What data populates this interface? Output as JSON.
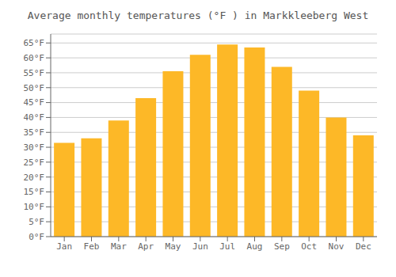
{
  "chart_data": {
    "type": "bar",
    "title": "Average monthly temperatures (°F ) in Markkleeberg West",
    "categories": [
      "Jan",
      "Feb",
      "Mar",
      "Apr",
      "May",
      "Jun",
      "Jul",
      "Aug",
      "Sep",
      "Oct",
      "Nov",
      "Dec"
    ],
    "values": [
      31.5,
      33.0,
      39.0,
      46.5,
      55.5,
      61.0,
      64.5,
      63.5,
      57.0,
      49.0,
      40.0,
      34.0
    ],
    "color": "#FDB827",
    "ylim": [
      0,
      68
    ],
    "yticks": [
      {
        "value": 0,
        "label": "0°F"
      },
      {
        "value": 5,
        "label": "5°F"
      },
      {
        "value": 10,
        "label": "10°F"
      },
      {
        "value": 15,
        "label": "15°F"
      },
      {
        "value": 20,
        "label": "20°F"
      },
      {
        "value": 25,
        "label": "25°F"
      },
      {
        "value": 30,
        "label": "30°F"
      },
      {
        "value": 35,
        "label": "35°F"
      },
      {
        "value": 40,
        "label": "40°F"
      },
      {
        "value": 45,
        "label": "45°F"
      },
      {
        "value": 50,
        "label": "50°F"
      },
      {
        "value": 55,
        "label": "55°F"
      },
      {
        "value": 60,
        "label": "60°F"
      },
      {
        "value": 65,
        "label": "65°F"
      }
    ],
    "grid": true
  }
}
